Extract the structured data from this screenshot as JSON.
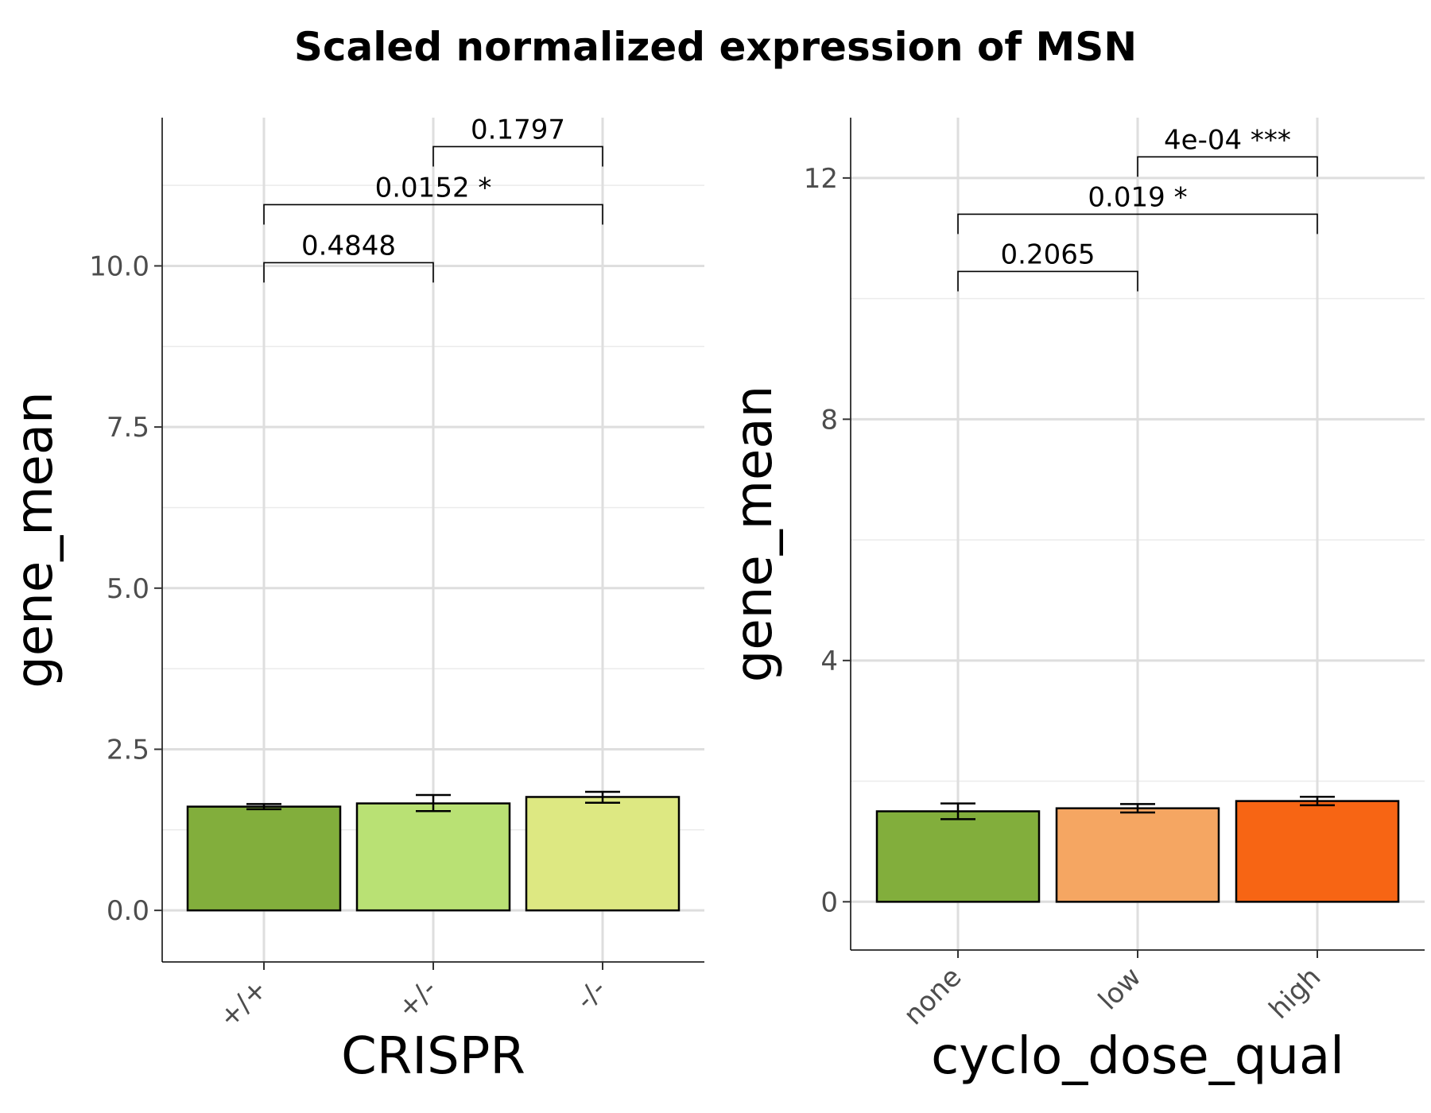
{
  "title": "Scaled normalized expression of MSN",
  "chart_data": [
    {
      "type": "bar",
      "xlabel": "CRISPR",
      "ylabel": "gene_mean",
      "categories": [
        "+/+",
        "+/-",
        "-/-"
      ],
      "values": [
        1.61,
        1.66,
        1.76
      ],
      "error": [
        [
          1.57,
          1.65
        ],
        [
          1.54,
          1.79
        ],
        [
          1.67,
          1.84
        ]
      ],
      "colors": [
        "#82ae3c",
        "#b9e174",
        "#dde882"
      ],
      "ylim": [
        -0.8,
        12.3
      ],
      "yticks": [
        0,
        2.5,
        5,
        7.5,
        10
      ],
      "ytick_labels": [
        "0.0",
        "2.5",
        "5.0",
        "7.5",
        "10.0"
      ],
      "grid": true,
      "comparisons": [
        {
          "from": 0,
          "to": 1,
          "y": 10.05,
          "label": "0.4848"
        },
        {
          "from": 0,
          "to": 2,
          "y": 10.95,
          "label": "0.0152 *"
        },
        {
          "from": 1,
          "to": 2,
          "y": 11.85,
          "label": "0.1797"
        }
      ]
    },
    {
      "type": "bar",
      "xlabel": "cyclo_dose_qual",
      "ylabel": "gene_mean",
      "categories": [
        "none",
        "low",
        "high"
      ],
      "values": [
        1.5,
        1.55,
        1.67
      ],
      "error": [
        [
          1.37,
          1.63
        ],
        [
          1.48,
          1.62
        ],
        [
          1.6,
          1.74
        ]
      ],
      "colors": [
        "#82ae3c",
        "#f5a662",
        "#f76514"
      ],
      "ylim": [
        -0.8,
        13.0
      ],
      "yticks": [
        0,
        4,
        8,
        12
      ],
      "ytick_labels": [
        "0",
        "4",
        "8",
        "12"
      ],
      "grid": true,
      "comparisons": [
        {
          "from": 0,
          "to": 1,
          "y": 10.45,
          "label": "0.2065"
        },
        {
          "from": 0,
          "to": 2,
          "y": 11.4,
          "label": "0.019 *"
        },
        {
          "from": 1,
          "to": 2,
          "y": 12.35,
          "label": "4e-04 ***"
        }
      ]
    }
  ]
}
